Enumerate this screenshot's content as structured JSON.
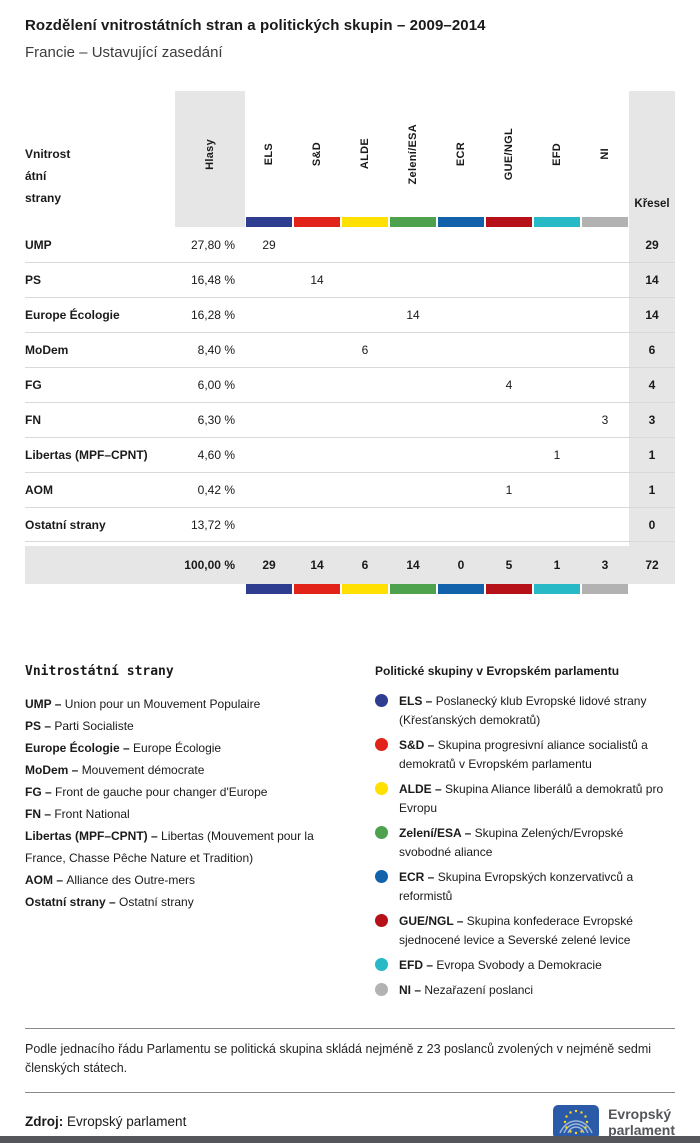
{
  "header": {
    "title": "Rozdělení vnitrostátních stran a politických skupin – 2009–2014",
    "subtitle": "Francie – Ustavující zasedání"
  },
  "table": {
    "first_col_header_lines": [
      "Vnitrost",
      "átní",
      "strany"
    ],
    "hlasy_header": "Hlasy",
    "kresel_header": "Křesel",
    "groups": [
      {
        "id": "els",
        "label": "ELS",
        "color": "#2e3d90"
      },
      {
        "id": "sd",
        "label": "S&D",
        "color": "#e2231a"
      },
      {
        "id": "alde",
        "label": "ALDE",
        "color": "#ffe000"
      },
      {
        "id": "zeleni",
        "label": "Zelení/ESA",
        "color": "#4ea24e"
      },
      {
        "id": "ecr",
        "label": "ECR",
        "color": "#1261ab"
      },
      {
        "id": "gue",
        "label": "GUE/NGL",
        "color": "#b61118"
      },
      {
        "id": "efd",
        "label": "EFD",
        "color": "#27b9c6"
      },
      {
        "id": "ni",
        "label": "NI",
        "color": "#b2b2b2"
      }
    ],
    "rows": [
      {
        "party": "UMP",
        "hlasy": "27,80 %",
        "seats": [
          "29",
          "",
          "",
          "",
          "",
          "",
          "",
          ""
        ],
        "kresel": "29"
      },
      {
        "party": "PS",
        "hlasy": "16,48 %",
        "seats": [
          "",
          "14",
          "",
          "",
          "",
          "",
          "",
          ""
        ],
        "kresel": "14"
      },
      {
        "party": "Europe Écologie",
        "hlasy": "16,28 %",
        "seats": [
          "",
          "",
          "",
          "14",
          "",
          "",
          "",
          ""
        ],
        "kresel": "14"
      },
      {
        "party": "MoDem",
        "hlasy": "8,40 %",
        "seats": [
          "",
          "",
          "6",
          "",
          "",
          "",
          "",
          ""
        ],
        "kresel": "6"
      },
      {
        "party": "FG",
        "hlasy": "6,00 %",
        "seats": [
          "",
          "",
          "",
          "",
          "",
          "4",
          "",
          ""
        ],
        "kresel": "4"
      },
      {
        "party": "FN",
        "hlasy": "6,30 %",
        "seats": [
          "",
          "",
          "",
          "",
          "",
          "",
          "",
          "3"
        ],
        "kresel": "3"
      },
      {
        "party": "Libertas (MPF–CPNT)",
        "hlasy": "4,60 %",
        "seats": [
          "",
          "",
          "",
          "",
          "",
          "",
          "1",
          ""
        ],
        "kresel": "1"
      },
      {
        "party": "AOM",
        "hlasy": "0,42 %",
        "seats": [
          "",
          "",
          "",
          "",
          "",
          "1",
          "",
          ""
        ],
        "kresel": "1"
      },
      {
        "party": "Ostatní strany",
        "hlasy": "13,72 %",
        "seats": [
          "",
          "",
          "",
          "",
          "",
          "",
          "",
          ""
        ],
        "kresel": "0"
      }
    ],
    "total": {
      "hlasy": "100,00 %",
      "seats": [
        "29",
        "14",
        "6",
        "14",
        "0",
        "5",
        "1",
        "3"
      ],
      "kresel": "72"
    }
  },
  "legend_parties": {
    "title": "Vnitrostátní strany",
    "items": [
      {
        "bold": "UMP –",
        "text": "Union pour un Mouvement Populaire"
      },
      {
        "bold": "PS –",
        "text": "Parti Socialiste"
      },
      {
        "bold": "Europe Écologie –",
        "text": "Europe Écologie"
      },
      {
        "bold": "MoDem –",
        "text": "Mouvement démocrate"
      },
      {
        "bold": "FG –",
        "text": "Front de gauche pour changer d'Europe"
      },
      {
        "bold": "FN –",
        "text": "Front National"
      },
      {
        "bold": "Libertas (MPF–CPNT) –",
        "text": "Libertas (Mouvement pour la France, Chasse Pêche Nature et Tradition)"
      },
      {
        "bold": "AOM –",
        "text": "Alliance des Outre-mers"
      },
      {
        "bold": "Ostatní strany –",
        "text": "Ostatní strany"
      }
    ]
  },
  "legend_groups": {
    "title": "Politické skupiny v Evropském parlamentu",
    "items": [
      {
        "bold": "ELS –",
        "color": "#2e3d90",
        "text": "Poslanecký klub Evropské lidové strany (Křesťanských demokratů)"
      },
      {
        "bold": "S&D –",
        "color": "#e2231a",
        "text": "Skupina progresivní aliance socialistů a demokratů v Evropském parlamentu"
      },
      {
        "bold": "ALDE –",
        "color": "#ffe000",
        "text": "Skupina Aliance liberálů a demokratů pro Evropu"
      },
      {
        "bold": "Zelení/ESA –",
        "color": "#4ea24e",
        "text": "Skupina Zelených/Evropské svobodné aliance"
      },
      {
        "bold": "ECR –",
        "color": "#1261ab",
        "text": "Skupina Evropských konzervativců a reformistů"
      },
      {
        "bold": "GUE/NGL –",
        "color": "#b61118",
        "text": "Skupina konfederace Evropské sjednocené levice a Severské zelené levice"
      },
      {
        "bold": "EFD –",
        "color": "#27b9c6",
        "text": "Evropa Svobody a Demokracie"
      },
      {
        "bold": "NI –",
        "color": "#b2b2b2",
        "text": "Nezařazení poslanci"
      }
    ]
  },
  "footnote": "Podle jednacího řádu Parlamentu se politická skupina skládá nejméně z 23 poslanců zvolených v nejméně sedmi členských státech.",
  "source": {
    "label": "Zdroj:",
    "value": "Evropský parlament"
  },
  "logo": {
    "line1": "Evropský",
    "line2": "parlament"
  },
  "chart_data": {
    "type": "table",
    "title": "Rozdělení vnitrostátních stran a politických skupin – 2009–2014",
    "subtitle": "Francie – Ustavující zasedání",
    "columns": [
      "Vnitrostátní strany",
      "Hlasy",
      "ELS",
      "S&D",
      "ALDE",
      "Zelení/ESA",
      "ECR",
      "GUE/NGL",
      "EFD",
      "NI",
      "Křesel"
    ],
    "rows": [
      {
        "party": "UMP",
        "hlasy_pct": 27.8,
        "group": "ELS",
        "seats": 29
      },
      {
        "party": "PS",
        "hlasy_pct": 16.48,
        "group": "S&D",
        "seats": 14
      },
      {
        "party": "Europe Écologie",
        "hlasy_pct": 16.28,
        "group": "Zelení/ESA",
        "seats": 14
      },
      {
        "party": "MoDem",
        "hlasy_pct": 8.4,
        "group": "ALDE",
        "seats": 6
      },
      {
        "party": "FG",
        "hlasy_pct": 6.0,
        "group": "GUE/NGL",
        "seats": 4
      },
      {
        "party": "FN",
        "hlasy_pct": 6.3,
        "group": "NI",
        "seats": 3
      },
      {
        "party": "Libertas (MPF–CPNT)",
        "hlasy_pct": 4.6,
        "group": "EFD",
        "seats": 1
      },
      {
        "party": "AOM",
        "hlasy_pct": 0.42,
        "group": "GUE/NGL",
        "seats": 1
      },
      {
        "party": "Ostatní strany",
        "hlasy_pct": 13.72,
        "group": null,
        "seats": 0
      }
    ],
    "totals": {
      "hlasy_pct": 100.0,
      "by_group": {
        "ELS": 29,
        "S&D": 14,
        "ALDE": 6,
        "Zelení/ESA": 14,
        "ECR": 0,
        "GUE/NGL": 5,
        "EFD": 1,
        "NI": 3
      },
      "seats": 72
    }
  }
}
